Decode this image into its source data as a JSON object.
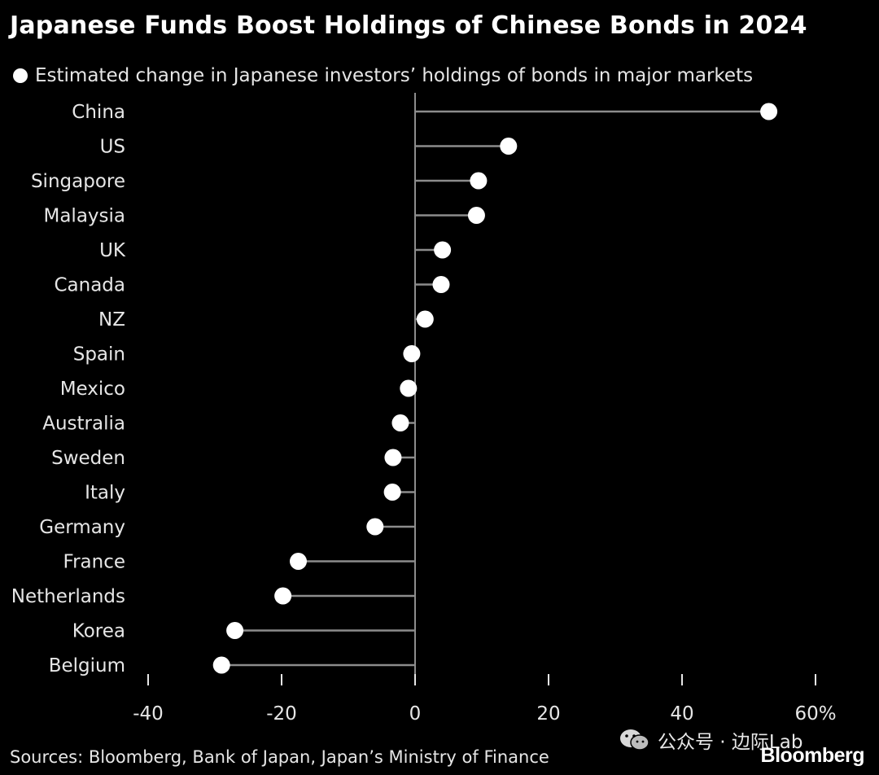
{
  "chart_data": {
    "type": "lollipop",
    "title": "Japanese Funds Boost Holdings of Chinese Bonds in 2024",
    "legend": "Estimated change in Japanese investors’ holdings of bonds in major markets",
    "categories": [
      "China",
      "US",
      "Singapore",
      "Malaysia",
      "UK",
      "Canada",
      "NZ",
      "Spain",
      "Mexico",
      "Australia",
      "Sweden",
      "Italy",
      "Germany",
      "France",
      "Netherlands",
      "Korea",
      "Belgium"
    ],
    "values": [
      53,
      14,
      9.5,
      9.2,
      4.1,
      3.9,
      1.5,
      -0.5,
      -1,
      -2.2,
      -3.3,
      -3.4,
      -6,
      -17.5,
      -19.8,
      -27,
      -29
    ],
    "xlim": [
      -40,
      60
    ],
    "xticks": [
      -40,
      -20,
      0,
      20,
      40,
      60
    ],
    "xticklabels": [
      "-40",
      "-20",
      "0",
      "20",
      "40",
      "60%"
    ],
    "xlabel": "",
    "ylabel": "",
    "colors": {
      "background": "#000000",
      "marker": "#ffffff",
      "stem": "#8c8c8c",
      "text": "#e6e6e6"
    }
  },
  "source": "Sources: Bloomberg, Bank of Japan, Japan’s Ministry of Finance",
  "watermark": "公众号 · 边际Lab",
  "brand": "Bloomberg"
}
